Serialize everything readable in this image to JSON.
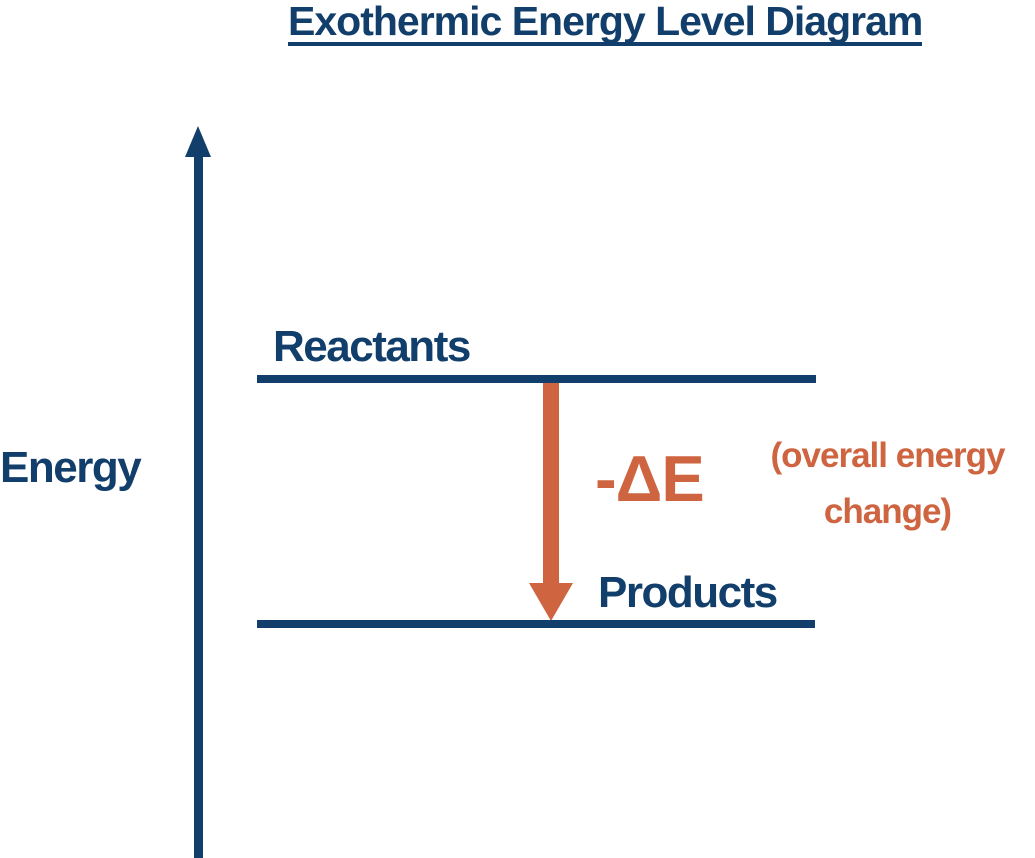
{
  "title": "Exothermic Energy Level Diagram",
  "colors": {
    "navy": "#123E6B",
    "orange": "#CE6540"
  },
  "axis": {
    "label": "Energy"
  },
  "levels": {
    "reactants": {
      "label": "Reactants"
    },
    "products": {
      "label": "Products"
    }
  },
  "delta": {
    "label": "-ΔE",
    "note": "(overall energy\nchange)"
  }
}
